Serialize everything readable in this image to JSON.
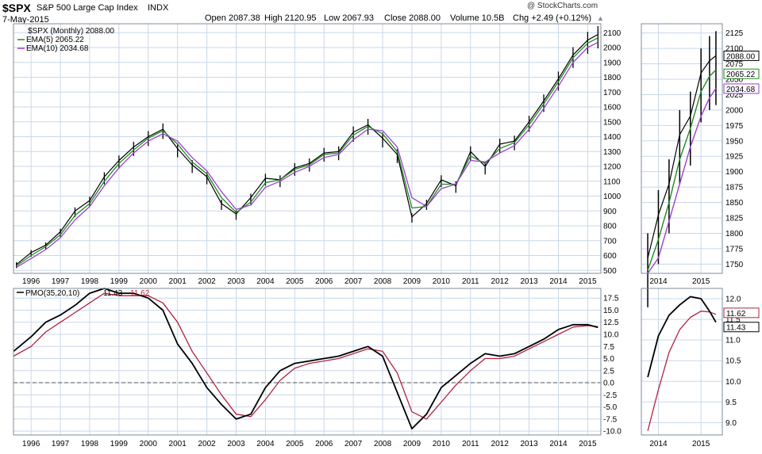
{
  "header": {
    "symbol": "$SPX",
    "name": "S&P 500 Large Cap Index",
    "exchange": "INDX",
    "date": "7-May-2015",
    "open": "Open 2087.38",
    "high": "High 2120.95",
    "low": "Low 2067.93",
    "close": "Close 2088.00",
    "volume": "Volume 10.5B",
    "chg": "Chg +2.49 (+0.12%)",
    "chg_arrow": "▲",
    "watermark": "@ StockCharts.com"
  },
  "legend": {
    "price": "$SPX (Monthly) 2088.00",
    "ema5": "EMA(5) 2065.22",
    "ema10": "EMA(10) 2034.68",
    "pmo_label": "PMO(35,20,10)",
    "pmo_value": "11.43",
    "pmo_signal": "11.62"
  },
  "colors": {
    "grid": "#c9d7ea",
    "frame": "#7f8c9c",
    "price": "#000000",
    "ema5": "#1f8a1f",
    "ema10": "#9b3fd0",
    "pmo": "#000000",
    "pmo_signal": "#b0243e",
    "zero_line": "#555555"
  },
  "chart_data": [
    {
      "type": "line",
      "title": "$SPX S&P 500 Large Cap Index INDX — monthly price bars",
      "x_ticks": [
        "1996",
        "1997",
        "1998",
        "1999",
        "2000",
        "2001",
        "2002",
        "2003",
        "2004",
        "2005",
        "2006",
        "2007",
        "2008",
        "2009",
        "2010",
        "2011",
        "2012",
        "2013",
        "2014",
        "2015"
      ],
      "y_ticks": [
        500,
        600,
        700,
        800,
        900,
        1000,
        1100,
        1200,
        1300,
        1400,
        1500,
        1600,
        1700,
        1800,
        1900,
        2000,
        2100
      ],
      "xlim": [
        1995.4,
        2015.45
      ],
      "ylim": [
        480,
        2160
      ],
      "grid": true,
      "legend_position": "top-left",
      "series": [
        {
          "name": "$SPX (Monthly)",
          "x": [
            1995.5,
            1996.0,
            1996.5,
            1997.0,
            1997.5,
            1998.0,
            1998.5,
            1999.0,
            1999.5,
            2000.0,
            2000.5,
            2001.0,
            2001.5,
            2002.0,
            2002.5,
            2003.0,
            2003.5,
            2004.0,
            2004.5,
            2005.0,
            2005.5,
            2006.0,
            2006.5,
            2007.0,
            2007.5,
            2008.0,
            2008.5,
            2009.0,
            2009.5,
            2010.0,
            2010.5,
            2011.0,
            2011.5,
            2012.0,
            2012.5,
            2013.0,
            2013.5,
            2014.0,
            2014.5,
            2015.0,
            2015.35
          ],
          "values": [
            540,
            620,
            670,
            760,
            900,
            970,
            1130,
            1240,
            1330,
            1400,
            1450,
            1320,
            1210,
            1130,
            950,
            880,
            990,
            1120,
            1110,
            1190,
            1220,
            1290,
            1300,
            1430,
            1480,
            1390,
            1280,
            860,
            950,
            1110,
            1070,
            1300,
            1200,
            1350,
            1370,
            1500,
            1640,
            1790,
            1950,
            2050,
            2088
          ]
        },
        {
          "name": "EMA(5)",
          "x": [
            1995.5,
            1996.0,
            1996.5,
            1997.0,
            1997.5,
            1998.0,
            1998.5,
            1999.0,
            1999.5,
            2000.0,
            2000.5,
            2001.0,
            2001.5,
            2002.0,
            2002.5,
            2003.0,
            2003.5,
            2004.0,
            2004.5,
            2005.0,
            2005.5,
            2006.0,
            2006.5,
            2007.0,
            2007.5,
            2008.0,
            2008.5,
            2009.0,
            2009.5,
            2010.0,
            2010.5,
            2011.0,
            2011.5,
            2012.0,
            2012.5,
            2013.0,
            2013.5,
            2014.0,
            2014.5,
            2015.0,
            2015.35
          ],
          "values": [
            530,
            600,
            660,
            740,
            870,
            950,
            1100,
            1220,
            1310,
            1390,
            1440,
            1350,
            1230,
            1150,
            990,
            890,
            960,
            1090,
            1110,
            1180,
            1210,
            1280,
            1290,
            1410,
            1470,
            1420,
            1300,
            920,
            930,
            1080,
            1080,
            1270,
            1220,
            1320,
            1360,
            1480,
            1620,
            1770,
            1930,
            2030,
            2065
          ]
        },
        {
          "name": "EMA(10)",
          "x": [
            1995.5,
            1996.0,
            1996.5,
            1997.0,
            1997.5,
            1998.0,
            1998.5,
            1999.0,
            1999.5,
            2000.0,
            2000.5,
            2001.0,
            2001.5,
            2002.0,
            2002.5,
            2003.0,
            2003.5,
            2004.0,
            2004.5,
            2005.0,
            2005.5,
            2006.0,
            2006.5,
            2007.0,
            2007.5,
            2008.0,
            2008.5,
            2009.0,
            2009.5,
            2010.0,
            2010.5,
            2011.0,
            2011.5,
            2012.0,
            2012.5,
            2013.0,
            2013.5,
            2014.0,
            2014.5,
            2015.0,
            2015.35
          ],
          "values": [
            520,
            580,
            640,
            720,
            840,
            930,
            1070,
            1190,
            1290,
            1370,
            1420,
            1370,
            1260,
            1170,
            1030,
            910,
            940,
            1060,
            1100,
            1160,
            1200,
            1260,
            1280,
            1380,
            1450,
            1440,
            1330,
            990,
            930,
            1050,
            1080,
            1240,
            1230,
            1290,
            1340,
            1450,
            1590,
            1740,
            1900,
            2000,
            2035
          ]
        }
      ]
    },
    {
      "type": "line",
      "title": "",
      "x_ticks": [
        "1996",
        "1997",
        "1998",
        "1999",
        "2000",
        "2001",
        "2002",
        "2003",
        "2004",
        "2005",
        "2006",
        "2007",
        "2008",
        "2009",
        "2010",
        "2011",
        "2012",
        "2013",
        "2014",
        "2015"
      ],
      "y_ticks": [
        -10.0,
        -7.5,
        -5.0,
        -2.5,
        0.0,
        2.5,
        5.0,
        7.5,
        10.0,
        12.5,
        15.0,
        17.5
      ],
      "xlim": [
        1995.4,
        2015.45
      ],
      "ylim": [
        -10.8,
        19.5
      ],
      "grid": true,
      "zero_line": 0.0,
      "series": [
        {
          "name": "PMO(35,20,10)",
          "x": [
            1995.4,
            1996.0,
            1996.5,
            1997.0,
            1997.5,
            1998.0,
            1998.5,
            1999.0,
            1999.5,
            2000.0,
            2000.5,
            2001.0,
            2001.5,
            2002.0,
            2002.5,
            2003.0,
            2003.5,
            2004.0,
            2004.5,
            2005.0,
            2005.5,
            2006.0,
            2006.5,
            2007.0,
            2007.5,
            2008.0,
            2008.5,
            2009.0,
            2009.5,
            2010.0,
            2010.5,
            2011.0,
            2011.5,
            2012.0,
            2012.5,
            2013.0,
            2013.5,
            2014.0,
            2014.5,
            2015.0,
            2015.35
          ],
          "values": [
            6.5,
            9.5,
            12.5,
            14,
            16,
            18.5,
            19.5,
            18.5,
            18.5,
            17.5,
            15,
            8,
            4,
            -1,
            -4.5,
            -7.5,
            -6.5,
            -1,
            2.5,
            4,
            4.5,
            5,
            5.5,
            6.5,
            7.5,
            5.5,
            -2,
            -9.5,
            -6.5,
            -1,
            1.5,
            4,
            6,
            5.5,
            6,
            7.5,
            9,
            11,
            12,
            12,
            11.43
          ]
        },
        {
          "name": "Signal",
          "x": [
            1995.4,
            1996.0,
            1996.5,
            1997.0,
            1997.5,
            1998.0,
            1998.5,
            1999.0,
            1999.5,
            2000.0,
            2000.5,
            2001.0,
            2001.5,
            2002.0,
            2002.5,
            2003.0,
            2003.5,
            2004.0,
            2004.5,
            2005.0,
            2005.5,
            2006.0,
            2006.5,
            2007.0,
            2007.5,
            2008.0,
            2008.5,
            2009.0,
            2009.5,
            2010.0,
            2010.5,
            2011.0,
            2011.5,
            2012.0,
            2012.5,
            2013.0,
            2013.5,
            2014.0,
            2014.5,
            2015.0,
            2015.35
          ],
          "values": [
            5.5,
            7.5,
            10.5,
            12.5,
            14.5,
            16.5,
            18.5,
            18,
            18,
            18,
            16.5,
            12.5,
            6.5,
            2,
            -2.5,
            -6.5,
            -7,
            -3.5,
            0.5,
            3,
            4,
            4.5,
            5,
            6,
            7,
            6.5,
            2,
            -6,
            -7.5,
            -4,
            -0.5,
            2.5,
            5,
            5,
            5.5,
            7,
            8.5,
            10,
            11.5,
            11.8,
            11.62
          ]
        }
      ]
    },
    {
      "type": "line",
      "title": "Zoomed price (right panel)",
      "x_ticks": [
        "2014",
        "2015"
      ],
      "y_ticks": [
        1750,
        1775,
        1800,
        1825,
        1850,
        1875,
        1900,
        1925,
        1950,
        1975,
        2000,
        2025,
        2050,
        2075,
        2100,
        2125
      ],
      "ylim": [
        1735,
        2140
      ],
      "series": [
        {
          "name": "$SPX (Monthly)",
          "x": [
            2013.75,
            2014.0,
            2014.25,
            2014.5,
            2014.75,
            2015.0,
            2015.2,
            2015.35
          ],
          "values": [
            1760,
            1830,
            1880,
            1960,
            1990,
            2060,
            2080,
            2088
          ]
        },
        {
          "name": "EMA(5)",
          "x": [
            2013.75,
            2014.0,
            2014.25,
            2014.5,
            2014.75,
            2015.0,
            2015.2,
            2015.35
          ],
          "values": [
            1740,
            1790,
            1850,
            1920,
            1970,
            2030,
            2055,
            2065
          ]
        },
        {
          "name": "EMA(10)",
          "x": [
            2013.75,
            2014.0,
            2014.25,
            2014.5,
            2014.75,
            2015.0,
            2015.2,
            2015.35
          ],
          "values": [
            1735,
            1760,
            1820,
            1880,
            1940,
            1990,
            2020,
            2035
          ]
        }
      ],
      "value_tags": [
        "2088.00",
        "2065.22",
        "2034.68"
      ]
    },
    {
      "type": "line",
      "title": "Zoomed PMO (right panel)",
      "x_ticks": [
        "2014",
        "2015"
      ],
      "y_ticks": [
        9.0,
        9.5,
        10.0,
        10.5,
        11.0,
        11.5,
        12.0
      ],
      "ylim": [
        8.7,
        12.25
      ],
      "series": [
        {
          "name": "PMO",
          "x": [
            2013.75,
            2014.0,
            2014.25,
            2014.5,
            2014.75,
            2015.0,
            2015.2,
            2015.35
          ],
          "values": [
            10.1,
            11.1,
            11.6,
            11.85,
            12.05,
            12.0,
            11.7,
            11.43
          ]
        },
        {
          "name": "Signal",
          "x": [
            2013.75,
            2014.0,
            2014.25,
            2014.5,
            2014.75,
            2015.0,
            2015.2,
            2015.35
          ],
          "values": [
            8.8,
            9.8,
            10.7,
            11.25,
            11.55,
            11.7,
            11.68,
            11.62
          ]
        }
      ],
      "value_tags": [
        "11.62",
        "11.43"
      ]
    }
  ]
}
